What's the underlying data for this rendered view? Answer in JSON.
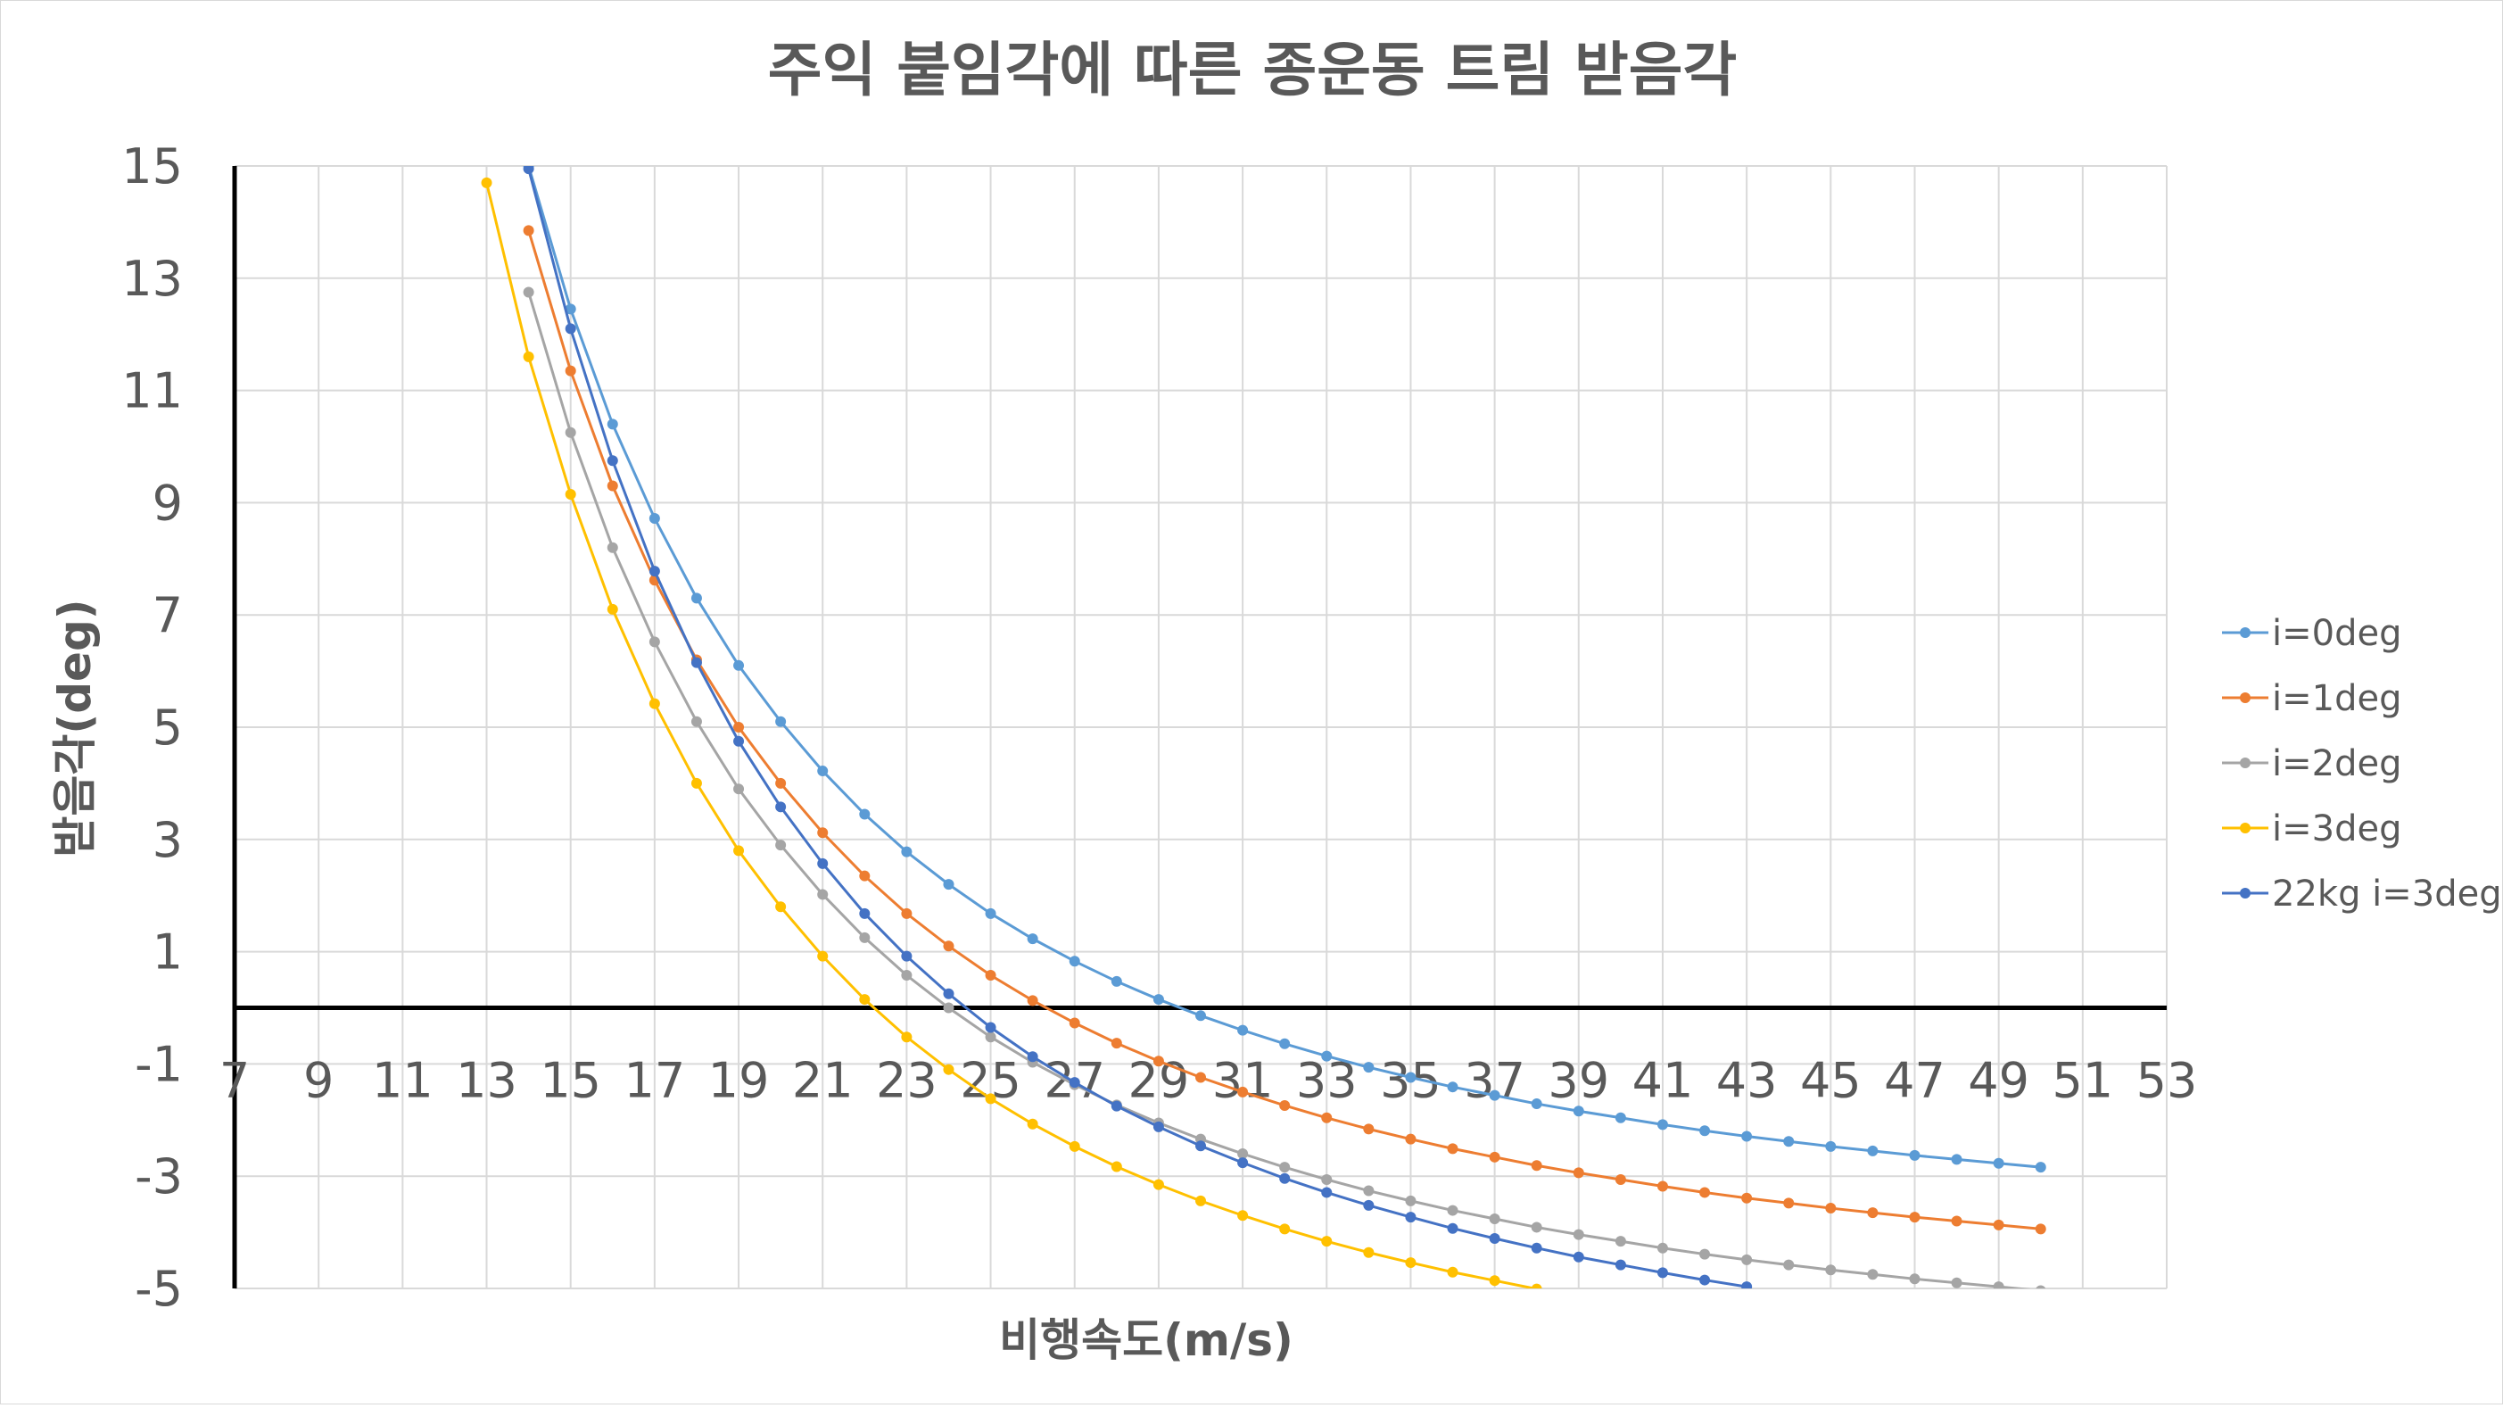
{
  "chart_data": {
    "type": "line",
    "title": "주익 붙임각에 따른 종운동 트림 받음각",
    "xlabel": "비행속도(m/s)",
    "ylabel": "받음각(deg)",
    "xlim": [
      7,
      53
    ],
    "ylim": [
      -5,
      15
    ],
    "xticks": [
      7,
      9,
      11,
      13,
      15,
      17,
      19,
      21,
      23,
      25,
      27,
      29,
      31,
      33,
      35,
      37,
      39,
      41,
      43,
      45,
      47,
      49,
      51,
      53
    ],
    "yticks": [
      15,
      13,
      11,
      9,
      7,
      5,
      3,
      1,
      -1,
      -3,
      -5
    ],
    "grid": true,
    "legend": "right",
    "x": [
      14,
      15,
      16,
      17,
      18,
      19,
      20,
      21,
      22,
      23,
      24,
      25,
      26,
      27,
      28,
      29,
      30,
      31,
      32,
      33,
      34,
      35,
      36,
      37,
      38,
      39,
      40,
      41,
      42,
      43,
      44,
      45,
      46,
      47,
      48,
      49,
      50
    ],
    "series": [
      {
        "name": "i=0deg",
        "color": "#5B9BD5",
        "values": [
          15.0,
          12.45,
          10.4,
          8.72,
          7.3,
          6.1,
          5.1,
          4.22,
          3.45,
          2.78,
          2.2,
          1.68,
          1.23,
          0.83,
          0.47,
          0.15,
          -0.14,
          -0.4,
          -0.64,
          -0.86,
          -1.06,
          -1.24,
          -1.41,
          -1.56,
          -1.71,
          -1.84,
          -1.96,
          -2.08,
          -2.19,
          -2.29,
          -2.38,
          -2.47,
          -2.55,
          -2.63,
          -2.7,
          -2.77,
          -2.84
        ]
      },
      {
        "name": "i=1deg",
        "color": "#ED7D31",
        "values": [
          13.85,
          11.35,
          9.3,
          7.62,
          6.2,
          5.0,
          4.0,
          3.12,
          2.35,
          1.68,
          1.1,
          0.58,
          0.13,
          -0.27,
          -0.63,
          -0.95,
          -1.24,
          -1.5,
          -1.74,
          -1.96,
          -2.16,
          -2.34,
          -2.51,
          -2.66,
          -2.81,
          -2.94,
          -3.06,
          -3.18,
          -3.29,
          -3.39,
          -3.48,
          -3.57,
          -3.65,
          -3.73,
          -3.8,
          -3.87,
          -3.94
        ]
      },
      {
        "name": "i=2deg",
        "color": "#A5A5A5",
        "values": [
          12.75,
          10.25,
          8.2,
          6.52,
          5.1,
          3.9,
          2.9,
          2.02,
          1.25,
          0.58,
          0.0,
          -0.52,
          -0.97,
          -1.37,
          -1.73,
          -2.05,
          -2.34,
          -2.6,
          -2.84,
          -3.06,
          -3.26,
          -3.44,
          -3.61,
          -3.76,
          -3.91,
          -4.04,
          -4.16,
          -4.28,
          -4.39,
          -4.49,
          -4.58,
          -4.67,
          -4.75,
          -4.83,
          -4.9,
          -4.97,
          -5.04
        ]
      },
      {
        "name": "i=3deg",
        "color": "#FFC000",
        "x": [
          13,
          14,
          15,
          16,
          17,
          18,
          19,
          20,
          21,
          22,
          23,
          24,
          25,
          26,
          27,
          28,
          29,
          30,
          31,
          32,
          33,
          34,
          35,
          36,
          37,
          38
        ],
        "values": [
          14.7,
          11.6,
          9.15,
          7.1,
          5.42,
          4.0,
          2.8,
          1.8,
          0.92,
          0.15,
          -0.52,
          -1.1,
          -1.62,
          -2.07,
          -2.47,
          -2.83,
          -3.15,
          -3.44,
          -3.7,
          -3.94,
          -4.16,
          -4.36,
          -4.54,
          -4.71,
          -4.86,
          -5.01
        ]
      },
      {
        "name": "22kg i=3deg",
        "color": "#4472C4",
        "x": [
          14,
          15,
          16,
          17,
          18,
          19,
          20,
          21,
          22,
          23,
          24,
          25,
          26,
          27,
          28,
          29,
          30,
          31,
          32,
          33,
          34,
          35,
          36,
          37,
          38,
          39,
          40,
          41,
          42,
          43
        ],
        "values": [
          14.95,
          12.1,
          9.75,
          7.78,
          6.15,
          4.75,
          3.58,
          2.57,
          1.68,
          0.92,
          0.25,
          -0.35,
          -0.87,
          -1.33,
          -1.75,
          -2.12,
          -2.46,
          -2.76,
          -3.04,
          -3.29,
          -3.52,
          -3.73,
          -3.93,
          -4.11,
          -4.28,
          -4.44,
          -4.58,
          -4.72,
          -4.85,
          -4.97
        ]
      }
    ]
  }
}
